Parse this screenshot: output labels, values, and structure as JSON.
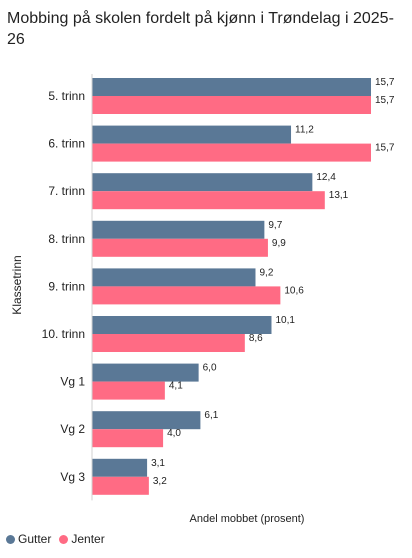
{
  "chart_data": {
    "type": "bar",
    "orientation": "horizontal",
    "title": "Mobbing på skolen fordelt på kjønn i Trøndelag i 2025-26",
    "xlabel": "Andel mobbet (prosent)",
    "ylabel": "Klassetrinn",
    "categories": [
      "5. trinn",
      "6. trinn",
      "7. trinn",
      "8. trinn",
      "9. trinn",
      "10. trinn",
      "Vg 1",
      "Vg 2",
      "Vg 3"
    ],
    "series": [
      {
        "name": "Gutter",
        "color": "#5a7896",
        "values": [
          15.7,
          11.2,
          12.4,
          9.7,
          9.2,
          10.1,
          6.0,
          6.1,
          3.1
        ],
        "labels": [
          "15,7",
          "11,2",
          "12,4",
          "9,7",
          "9,2",
          "10,1",
          "6,0",
          "6,1",
          "3,1"
        ]
      },
      {
        "name": "Jenter",
        "color": "#ff6b84",
        "values": [
          15.7,
          15.7,
          13.1,
          9.9,
          10.6,
          8.6,
          4.1,
          4.0,
          3.2
        ],
        "labels": [
          "15,7",
          "15,7",
          "13,1",
          "9,9",
          "10,6",
          "8,6",
          "4,1",
          "4,0",
          "3,2"
        ]
      }
    ],
    "xlim": [
      0,
      15.7
    ],
    "grid": false,
    "legend": "bottom-left"
  }
}
